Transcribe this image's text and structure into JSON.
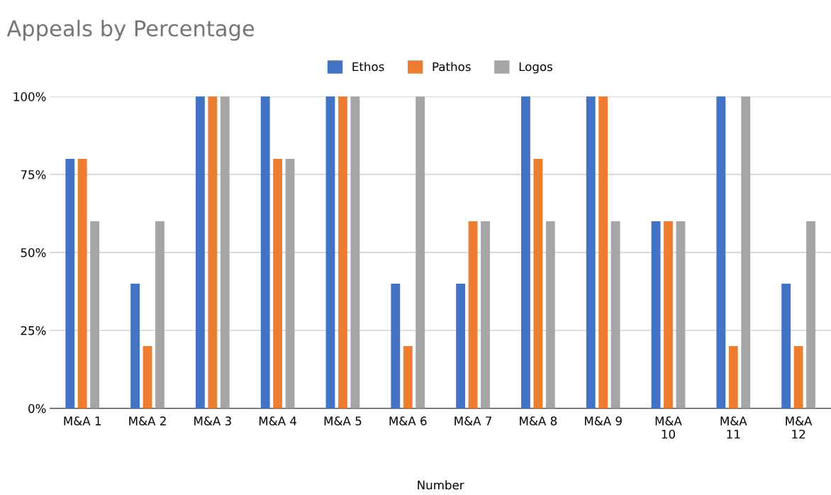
{
  "chart_data": {
    "type": "bar",
    "title": "Appeals by Percentage",
    "xlabel": "Number",
    "categories": [
      "M&A 1",
      "M&A 2",
      "M&A 3",
      "M&A 4",
      "M&A 5",
      "M&A 6",
      "M&A 7",
      "M&A 8",
      "M&A 9",
      "M&A\n10",
      "M&A\n11",
      "M&A\n12"
    ],
    "series": [
      {
        "name": "Ethos",
        "color": "#4472c4",
        "values": [
          80,
          40,
          100,
          100,
          100,
          40,
          40,
          100,
          100,
          60,
          100,
          40
        ]
      },
      {
        "name": "Pathos",
        "color": "#ed7d31",
        "values": [
          80,
          20,
          100,
          80,
          100,
          20,
          60,
          80,
          100,
          60,
          20,
          20
        ]
      },
      {
        "name": "Logos",
        "color": "#a5a5a5",
        "values": [
          60,
          60,
          100,
          80,
          100,
          100,
          60,
          60,
          60,
          60,
          100,
          60
        ]
      }
    ],
    "ylim": [
      0,
      100
    ],
    "yticks": [
      {
        "value": 0,
        "label": "0%"
      },
      {
        "value": 25,
        "label": "25%"
      },
      {
        "value": 50,
        "label": "50%"
      },
      {
        "value": 75,
        "label": "75%"
      },
      {
        "value": 100,
        "label": "100%"
      }
    ],
    "grid": "y",
    "legend": "top"
  }
}
